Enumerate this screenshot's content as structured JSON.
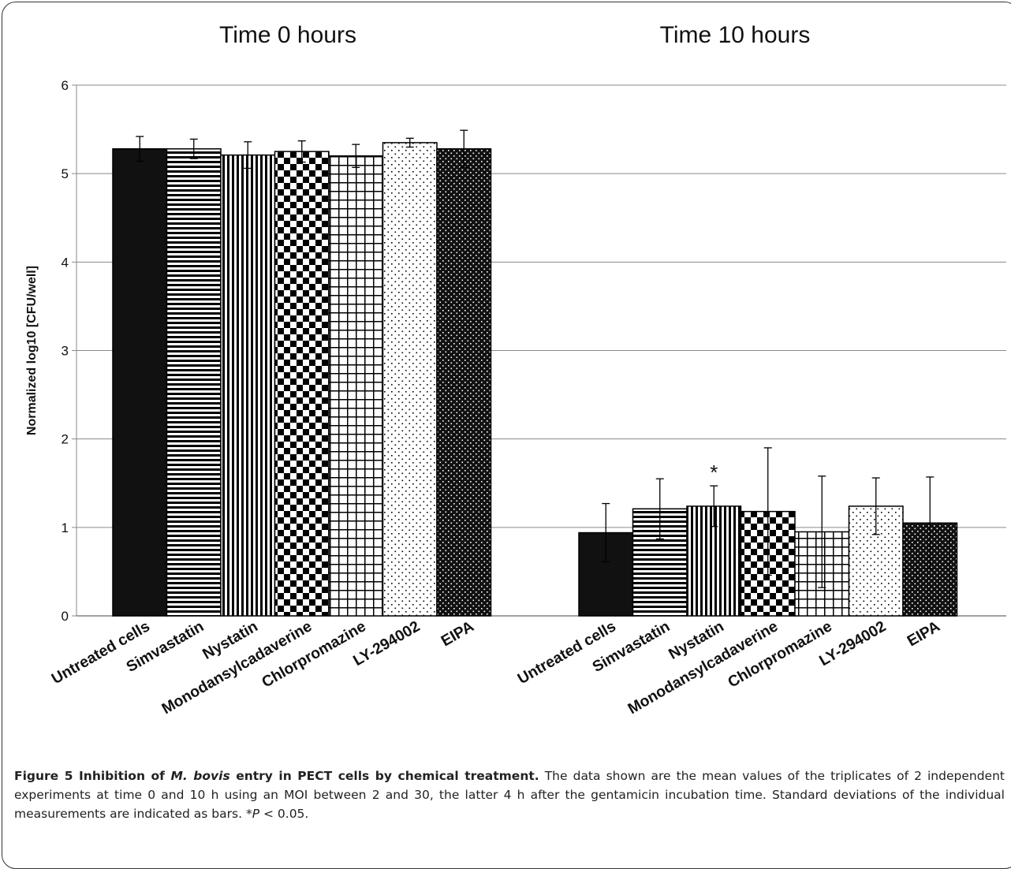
{
  "panels": [
    {
      "title": "Time 0 hours"
    },
    {
      "title": "Time 10 hours"
    }
  ],
  "caption": {
    "lead_pre": "Figure 5 Inhibition of ",
    "lead_italic": "M. bovis",
    "lead_post": " entry in PECT cells by chemical treatment.",
    "body_pre": " The data shown are the mean values of the triplicates of 2 independent experiments at time 0 and 10 h using an MOI between 2 and 30, the latter 4 h after the gentamicin incubation time. Standard deviations of the individual measurements are indicated as bars. *",
    "body_italic": "P",
    "body_post": " < 0.05."
  },
  "chart_data": {
    "type": "bar",
    "ylabel": "Normalized log10 [CFU/well]",
    "ylim": [
      0,
      6
    ],
    "yticks": [
      0,
      1,
      2,
      3,
      4,
      5,
      6
    ],
    "grid": true,
    "categories": [
      "Untreated cells",
      "Simvastatin",
      "Nystatin",
      "Monodansylcadaverine",
      "Chlorpromazine",
      "LY-294002",
      "EIPA"
    ],
    "patterns": [
      "solid-black",
      "horizontal-lines",
      "vertical-lines",
      "checkerboard",
      "grid",
      "sparse-dots",
      "dense-dots"
    ],
    "groups": [
      {
        "label": "Time 0 hours",
        "values": [
          5.28,
          5.28,
          5.21,
          5.25,
          5.2,
          5.35,
          5.28
        ],
        "errors": [
          0.14,
          0.11,
          0.15,
          0.12,
          0.13,
          0.05,
          0.21
        ],
        "annotations": [
          "",
          "",
          "",
          "",
          "",
          "",
          ""
        ]
      },
      {
        "label": "Time 10 hours",
        "values": [
          0.94,
          1.21,
          1.24,
          1.18,
          0.95,
          1.24,
          1.05
        ],
        "errors": [
          0.33,
          0.34,
          0.23,
          0.72,
          0.63,
          0.32,
          0.52
        ],
        "annotations": [
          "",
          "",
          "*",
          "",
          "",
          "",
          ""
        ]
      }
    ]
  }
}
